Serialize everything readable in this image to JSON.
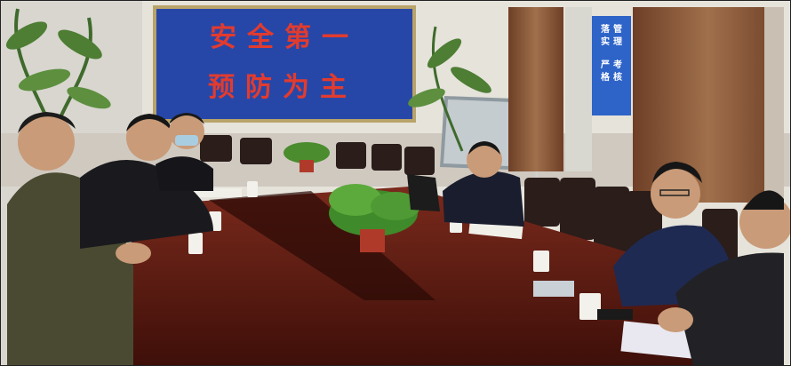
{
  "banner": {
    "line1": "安全第一",
    "line2": "预防为主"
  },
  "side_banner": {
    "lines": [
      "落",
      "实",
      "管",
      "理",
      "严",
      "格",
      "考",
      "核"
    ]
  },
  "colors": {
    "wall": "#e6e3db",
    "banner_blue": "#2747a8",
    "banner_text_red": "#e23b2e",
    "table_wood": "#5a1a12",
    "curtain": "#8a5a3a"
  }
}
